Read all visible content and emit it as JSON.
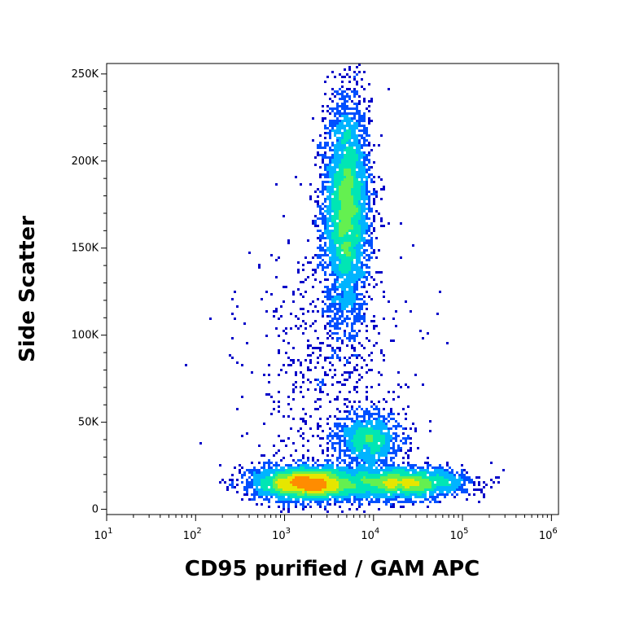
{
  "chart_data": {
    "type": "scatter",
    "subtype": "flow-cytometry-density-dot-plot",
    "xlabel": "CD95 purified / GAM APC",
    "ylabel": "Side Scatter",
    "x_scale": "log",
    "xlim": [
      10,
      1200000
    ],
    "ylim": [
      -3000,
      256000
    ],
    "x_ticks": [
      {
        "base": "10",
        "exp": "1",
        "value": 10
      },
      {
        "base": "10",
        "exp": "2",
        "value": 100
      },
      {
        "base": "10",
        "exp": "3",
        "value": 1000
      },
      {
        "base": "10",
        "exp": "4",
        "value": 10000
      },
      {
        "base": "10",
        "exp": "5",
        "value": 100000
      },
      {
        "base": "10",
        "exp": "6",
        "value": 1000000
      }
    ],
    "y_ticks": [
      {
        "label": "0",
        "value": 0
      },
      {
        "label": "50K",
        "value": 50000
      },
      {
        "label": "100K",
        "value": 100000
      },
      {
        "label": "150K",
        "value": 150000
      },
      {
        "label": "200K",
        "value": 200000
      },
      {
        "label": "250K",
        "value": 250000
      }
    ],
    "grid": false,
    "legend": "none",
    "colormap": [
      "#0000c8",
      "#0050ff",
      "#00b4ff",
      "#00e6b4",
      "#64f050",
      "#e6e600",
      "#ff8c00",
      "#ff1e00"
    ],
    "populations": [
      {
        "x_center": 5000,
        "y_center": 172000,
        "x_log_spread": 0.13,
        "y_spread": 32000,
        "count": 4200
      },
      {
        "x_center": 1800,
        "y_center": 15000,
        "x_log_spread": 0.3,
        "y_spread": 5000,
        "count": 3200
      },
      {
        "x_center": 22000,
        "y_center": 15000,
        "x_log_spread": 0.35,
        "y_spread": 4500,
        "count": 2200
      },
      {
        "x_center": 9000,
        "y_center": 40000,
        "x_log_spread": 0.18,
        "y_spread": 8000,
        "count": 1100
      },
      {
        "x_center": 3000,
        "y_center": 80000,
        "x_log_spread": 0.45,
        "y_spread": 40000,
        "count": 600
      }
    ]
  }
}
